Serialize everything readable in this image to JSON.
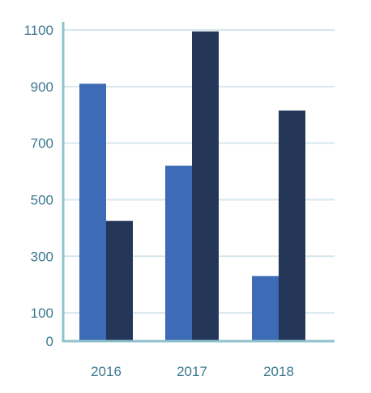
{
  "chart_data": {
    "type": "bar",
    "title": "",
    "xlabel": "",
    "ylabel": "",
    "categories": [
      "2016",
      "2017",
      "2018"
    ],
    "series": [
      {
        "values": [
          910,
          620,
          230
        ]
      },
      {
        "values": [
          425,
          1095,
          815
        ]
      }
    ],
    "ylim": [
      0,
      1100
    ],
    "yticks": [
      0,
      100,
      300,
      500,
      700,
      900,
      1100
    ],
    "ytick_labels": [
      "0",
      "100",
      "300",
      "500",
      "700",
      "900",
      "1100"
    ],
    "grid": true,
    "legend": "none",
    "colors": {
      "series": [
        "#3e6bb5",
        "#243758"
      ],
      "axis": "#8ec2cc",
      "grid": "#d6e7ec",
      "text": "#3d7890"
    }
  }
}
